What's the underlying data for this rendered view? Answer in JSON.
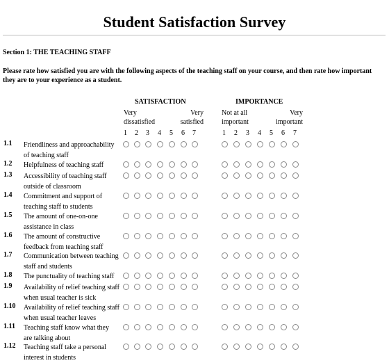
{
  "title": "Student Satisfaction Survey",
  "section": "Section 1: THE TEACHING STAFF",
  "instructions": "Please rate how satisfied you are with the following aspects of the teaching staff on your course, and then rate how important they are to your experience as a student.",
  "groups": {
    "satisfaction": {
      "label": "SATISFACTION",
      "low_line1": "Very",
      "low_line2": "dissatisfied",
      "high_line1": "Very",
      "high_line2": "satisfied"
    },
    "importance": {
      "label": "IMPORTANCE",
      "low_line1": "Not at all",
      "low_line2": "important",
      "high_line1": "Very",
      "high_line2": "important"
    }
  },
  "scale": [
    "1",
    "2",
    "3",
    "4",
    "5",
    "6",
    "7"
  ],
  "questions": [
    {
      "num": "1.1",
      "line1": "Friendliness and approachability",
      "line2": "of teaching staff"
    },
    {
      "num": "1.2",
      "line1": "Helpfulness of teaching staff",
      "line2": ""
    },
    {
      "num": "1.3",
      "line1": "Accessibility of teaching staff",
      "line2": "outside of classroom"
    },
    {
      "num": "1.4",
      "line1": "Commitment and support of",
      "line2": "teaching staff to students"
    },
    {
      "num": "1.5",
      "line1": "The amount of one-on-one",
      "line2": "assistance in class"
    },
    {
      "num": "1.6",
      "line1": "The amount of constructive",
      "line2": "feedback from teaching staff"
    },
    {
      "num": "1.7",
      "line1": "Communication between teaching",
      "line2": "staff and students"
    },
    {
      "num": "1.8",
      "line1": "The punctuality of teaching staff",
      "line2": ""
    },
    {
      "num": "1.9",
      "line1": "Availability of relief teaching staff",
      "line2": "when usual teacher is sick"
    },
    {
      "num": "1.10",
      "line1": "Availability of relief teaching staff",
      "line2": "when usual teacher leaves"
    },
    {
      "num": "1.11",
      "line1": "Teaching staff know what they",
      "line2": "are talking about"
    },
    {
      "num": "1.12",
      "line1": "Teaching staff take a personal",
      "line2": "interest in students"
    }
  ]
}
